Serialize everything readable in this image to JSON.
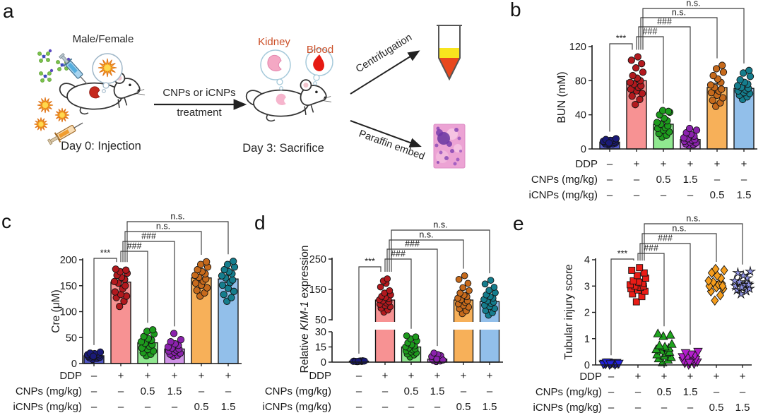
{
  "panel_letters": {
    "a": "a",
    "b": "b",
    "c": "c",
    "d": "d",
    "e": "e"
  },
  "panel_a": {
    "mouse_caption": "Male/Female",
    "treatment_line1": "CNPs or iCNPs",
    "treatment_line2": "treatment",
    "day0_caption": "Day 0: Injection",
    "day3_caption": "Day 3: Sacrifice",
    "kidney_label": "Kidney",
    "blood_label": "Blood",
    "centrifugation_label": "Centrifugation",
    "paraffin_label": "Paraffin embed",
    "organ_label_color": "#cb4e26"
  },
  "x_table": {
    "rows": [
      {
        "label": "DDP",
        "values": [
          "–",
          "+",
          "+",
          "+",
          "+",
          "+"
        ]
      },
      {
        "label": "CNPs (mg/kg)",
        "values": [
          "–",
          "–",
          "0.5",
          "1.5",
          "–",
          "–"
        ]
      },
      {
        "label": "iCNPs (mg/kg)",
        "values": [
          "–",
          "–",
          "–",
          "–",
          "0.5",
          "1.5"
        ]
      }
    ]
  },
  "significance": [
    {
      "from": 0,
      "to": 1,
      "label": "***"
    },
    {
      "from": 1,
      "to": 2,
      "label": "###"
    },
    {
      "from": 1,
      "to": 3,
      "label": "###"
    },
    {
      "from": 1,
      "to": 4,
      "label": "n.s."
    },
    {
      "from": 1,
      "to": 5,
      "label": "n.s."
    }
  ],
  "chart_data": [
    {
      "id": "b",
      "type": "bar-scatter",
      "title": "",
      "ylabel": "BUN (mM)",
      "xlabel": "",
      "ylim": [
        0,
        120
      ],
      "yticks": [
        0,
        40,
        80,
        120
      ],
      "groups": [
        {
          "mean": 8,
          "sem": 1.5,
          "bar_color": "#5156c4",
          "dot_color": "#1a1a78",
          "points": [
            5,
            6,
            6,
            7,
            7,
            8,
            8,
            8,
            9,
            9,
            10,
            10,
            11,
            12,
            7
          ]
        },
        {
          "mean": 80,
          "sem": 5,
          "bar_color": "#f79293",
          "dot_color": "#b2191e",
          "points": [
            52,
            58,
            62,
            65,
            68,
            70,
            72,
            74,
            76,
            78,
            80,
            83,
            86,
            90,
            95,
            100,
            104,
            108
          ]
        },
        {
          "mean": 29,
          "sem": 4,
          "bar_color": "#90e890",
          "dot_color": "#1d9b1d",
          "points": [
            14,
            16,
            18,
            20,
            22,
            24,
            25,
            27,
            29,
            31,
            33,
            36,
            40,
            43,
            45,
            44
          ]
        },
        {
          "mean": 11,
          "sem": 2,
          "bar_color": "#cf93e6",
          "dot_color": "#8b22ad",
          "points": [
            4,
            5,
            6,
            7,
            8,
            9,
            10,
            11,
            12,
            13,
            15,
            17,
            19,
            22,
            24
          ]
        },
        {
          "mean": 72,
          "sem": 5,
          "bar_color": "#f7b059",
          "dot_color": "#c66a1c",
          "points": [
            50,
            54,
            57,
            60,
            63,
            66,
            68,
            70,
            72,
            75,
            78,
            82,
            86,
            90,
            94,
            98
          ]
        },
        {
          "mean": 71,
          "sem": 3,
          "bar_color": "#92bfea",
          "dot_color": "#157d8d",
          "points": [
            58,
            61,
            63,
            65,
            66,
            68,
            69,
            71,
            72,
            74,
            76,
            78,
            81,
            85,
            89,
            92
          ]
        }
      ]
    },
    {
      "id": "c",
      "type": "bar-scatter",
      "title": "",
      "ylabel": "Cre (μM)",
      "xlabel": "",
      "ylim": [
        0,
        200
      ],
      "yticks": [
        0,
        50,
        100,
        150,
        200
      ],
      "groups": [
        {
          "mean": 15,
          "sem": 2,
          "bar_color": "#5156c4",
          "dot_color": "#1a1a78",
          "points": [
            8,
            10,
            11,
            12,
            13,
            14,
            15,
            15,
            16,
            17,
            18,
            19,
            20,
            22,
            14
          ]
        },
        {
          "mean": 157,
          "sem": 8,
          "bar_color": "#f79293",
          "dot_color": "#b2191e",
          "points": [
            110,
            120,
            127,
            130,
            133,
            138,
            144,
            150,
            155,
            158,
            162,
            166,
            170,
            174,
            177,
            180,
            182
          ]
        },
        {
          "mean": 40,
          "sem": 5,
          "bar_color": "#90e890",
          "dot_color": "#1d9b1d",
          "points": [
            15,
            18,
            21,
            24,
            27,
            30,
            33,
            36,
            39,
            42,
            45,
            48,
            52,
            57,
            62,
            65
          ]
        },
        {
          "mean": 28,
          "sem": 4,
          "bar_color": "#cf93e6",
          "dot_color": "#8b22ad",
          "points": [
            14,
            16,
            18,
            20,
            22,
            24,
            26,
            28,
            30,
            32,
            35,
            38,
            42,
            46,
            58
          ]
        },
        {
          "mean": 165,
          "sem": 6,
          "bar_color": "#f7b059",
          "dot_color": "#c66a1c",
          "points": [
            130,
            136,
            141,
            146,
            151,
            155,
            159,
            163,
            166,
            170,
            173,
            177,
            181,
            186,
            191,
            196
          ]
        },
        {
          "mean": 163,
          "sem": 7,
          "bar_color": "#92bfea",
          "dot_color": "#157d8d",
          "points": [
            120,
            127,
            133,
            139,
            145,
            151,
            156,
            161,
            165,
            169,
            173,
            177,
            181,
            186,
            191,
            197
          ]
        }
      ]
    },
    {
      "id": "d",
      "type": "bar-scatter",
      "title": "",
      "xlabel": "",
      "ylabel": "Relative KIM-1 expression",
      "ylabel_parts": [
        "Relative ",
        "KIM-1",
        " expression"
      ],
      "ylabel_italic_index": 1,
      "axis_break": true,
      "ylim_lower": [
        0,
        30
      ],
      "yticks_lower": [
        0,
        15,
        30
      ],
      "ylim_upper": [
        50,
        250
      ],
      "yticks_upper": [
        50,
        150,
        250
      ],
      "groups": [
        {
          "mean": 1,
          "sem": 0.4,
          "bar_color": "#5156c4",
          "dot_color": "#1a1a78",
          "points": [
            0.4,
            0.6,
            0.8,
            0.9,
            1,
            1.1,
            1.2,
            1.4,
            0.5,
            0.7,
            1.3,
            1,
            0.8,
            1.1,
            0.9
          ]
        },
        {
          "mean": 115,
          "sem": 30,
          "bar_color": "#f79293",
          "dot_color": "#b2191e",
          "points": [
            75,
            82,
            88,
            93,
            97,
            101,
            105,
            109,
            112,
            116,
            119,
            123,
            127,
            132,
            138,
            146,
            158,
            170,
            178,
            185
          ]
        },
        {
          "mean": 15,
          "sem": 7,
          "bar_color": "#90e890",
          "dot_color": "#1d9b1d",
          "points": [
            5,
            7,
            8,
            9,
            10,
            11,
            12,
            13,
            14,
            15,
            16,
            17,
            19,
            21,
            23,
            25,
            26
          ]
        },
        {
          "mean": 3,
          "sem": 1.5,
          "bar_color": "#cf93e6",
          "dot_color": "#8b22ad",
          "points": [
            0.5,
            1,
            1.5,
            2,
            2.5,
            3,
            3.5,
            4,
            4.5,
            5.5,
            6.5,
            7.5,
            9,
            2,
            3
          ]
        },
        {
          "mean": 115,
          "sem": 25,
          "bar_color": "#f7b059",
          "dot_color": "#c66a1c",
          "points": [
            70,
            79,
            86,
            92,
            97,
            102,
            107,
            112,
            116,
            121,
            126,
            131,
            138,
            146,
            156,
            170,
            183,
            195
          ]
        },
        {
          "mean": 110,
          "sem": 22,
          "bar_color": "#92bfea",
          "dot_color": "#157d8d",
          "points": [
            65,
            73,
            80,
            87,
            93,
            98,
            103,
            108,
            112,
            117,
            121,
            126,
            132,
            139,
            147,
            157,
            168,
            180
          ]
        }
      ]
    },
    {
      "id": "e",
      "type": "scatter",
      "title": "",
      "ylabel": "Tubular injury score",
      "xlabel": "",
      "ylim": [
        0,
        4
      ],
      "yticks": [
        0,
        1,
        2,
        3,
        4
      ],
      "groups": [
        {
          "mean": 0.05,
          "sem": 0.03,
          "marker": "triangle-down",
          "dot_color": "#2222dd",
          "points": [
            0,
            0,
            0.02,
            0.03,
            0.05,
            0.05,
            0.06,
            0.08,
            0.1,
            0.02,
            0.04,
            0.07,
            0.09,
            0.05,
            0.03
          ]
        },
        {
          "mean": 3.0,
          "sem": 0.08,
          "marker": "square",
          "dot_color": "#ea1c16",
          "points": [
            2.4,
            2.6,
            2.7,
            2.8,
            2.85,
            2.9,
            2.95,
            3,
            3,
            3.05,
            3.1,
            3.15,
            3.2,
            3.3,
            3.4,
            3.5,
            3.6,
            3.7
          ]
        },
        {
          "mean": 0.55,
          "sem": 0.07,
          "marker": "triangle-up",
          "dot_color": "#1fa51f",
          "points": [
            0.1,
            0.2,
            0.25,
            0.3,
            0.35,
            0.4,
            0.45,
            0.5,
            0.55,
            0.6,
            0.65,
            0.7,
            0.75,
            0.8,
            1.1,
            1.15,
            1.2
          ]
        },
        {
          "mean": 0.15,
          "sem": 0.05,
          "marker": "triangle-down",
          "dot_color": "#b31ecb",
          "points": [
            0,
            0.03,
            0.06,
            0.1,
            0.12,
            0.15,
            0.18,
            0.2,
            0.25,
            0.3,
            0.35,
            0.4,
            0.45,
            0.5,
            0.08
          ]
        },
        {
          "mean": 3.1,
          "sem": 0.08,
          "marker": "diamond",
          "dot_color": "#f59d1d",
          "points": [
            2.45,
            2.65,
            2.8,
            2.9,
            2.95,
            3,
            3.05,
            3.1,
            3.15,
            3.2,
            3.3,
            3.4,
            3.5,
            3.6,
            3.65,
            3
          ]
        },
        {
          "mean": 3.05,
          "sem": 0.06,
          "marker": "star",
          "dot_color": "#9195e6",
          "points": [
            2.7,
            2.8,
            2.85,
            2.9,
            2.95,
            3,
            3.05,
            3.1,
            3.15,
            3.2,
            3.3,
            3.4,
            3.5,
            3.55,
            2.95,
            3.05
          ]
        }
      ]
    }
  ]
}
